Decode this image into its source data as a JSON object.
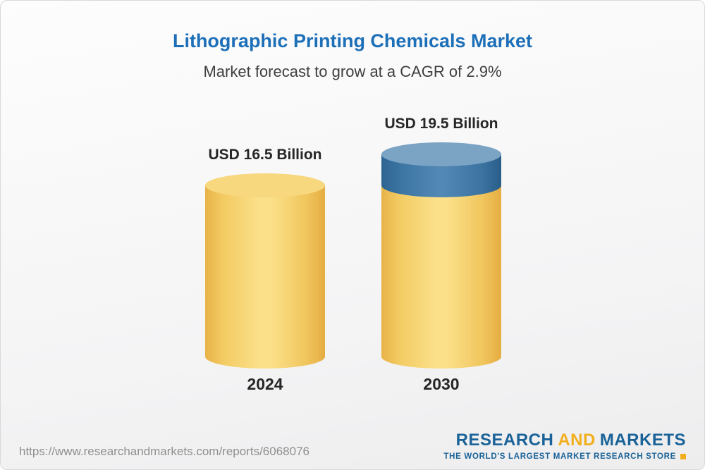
{
  "header": {
    "title": "Lithographic Printing Chemicals Market",
    "subtitle": "Market forecast to grow at a CAGR of 2.9%"
  },
  "chart_data": {
    "type": "bar",
    "style": "3d-cylinder",
    "title": "Lithographic Printing Chemicals Market",
    "subtitle": "Market forecast to grow at a CAGR of 2.9%",
    "categories": [
      "2024",
      "2030"
    ],
    "values": [
      16.5,
      19.5
    ],
    "unit": "USD Billion",
    "value_labels": [
      "USD 16.5 Billion",
      "USD 19.5 Billion"
    ],
    "cagr_percent": 2.9,
    "ylim": [
      0,
      19.5
    ],
    "grid": false,
    "legend": "none",
    "colors": {
      "bar_base": "#f3c95f",
      "bar_base_top": "#f7d87e",
      "growth_cap": "#4c82ae",
      "growth_cap_top": "#7ba3c4"
    }
  },
  "footer": {
    "url": "https://www.researchandmarkets.com/reports/6068076",
    "logo": {
      "word_research": "RESEARCH",
      "word_and": "AND",
      "word_markets": "MARKETS",
      "tagline": "THE WORLD'S LARGEST MARKET RESEARCH STORE",
      "brand_blue": "#1a6398",
      "brand_yellow": "#f2af1d"
    }
  }
}
